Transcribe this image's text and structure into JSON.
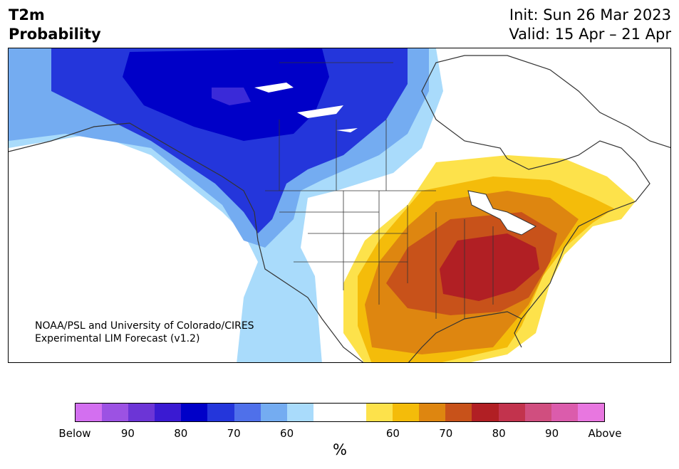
{
  "header": {
    "title_line1": "T2m",
    "title_line2": "Probability",
    "init_text": "Init: Sun 26 Mar 2023",
    "valid_text": "Valid: 15 Apr – 21 Apr"
  },
  "map": {
    "credit_line1": "NOAA/PSL and University of Colorado/CIRES",
    "credit_line2": "Experimental LIM Forecast (v1.2)",
    "colors": {
      "below_60": "#a9dbfb",
      "below_70": "#74acf1",
      "below_80": "#2436db",
      "below_90": "#0000c8",
      "below_95": "#3a2ad8",
      "above_60": "#fde24b",
      "above_65": "#f4bc0a",
      "above_70": "#de8610",
      "above_75": "#c8521a",
      "above_80": "#b11f24",
      "land_outline": "#333333"
    }
  },
  "colorbar": {
    "colors": [
      "#d36ff0",
      "#9c52e3",
      "#6c35d6",
      "#3a1ad2",
      "#0000c8",
      "#2436db",
      "#4f70ea",
      "#74acf1",
      "#a9dbfb",
      "#ffffff",
      "#ffffff",
      "#fde24b",
      "#f4bc0a",
      "#de8610",
      "#c8521a",
      "#b11f24",
      "#c2334d",
      "#d04e7f",
      "#db5cac",
      "#e877e0"
    ],
    "tick_labels": [
      "Below",
      "90",
      "80",
      "70",
      "60",
      "60",
      "70",
      "80",
      "90",
      "Above"
    ],
    "unit": "%"
  }
}
